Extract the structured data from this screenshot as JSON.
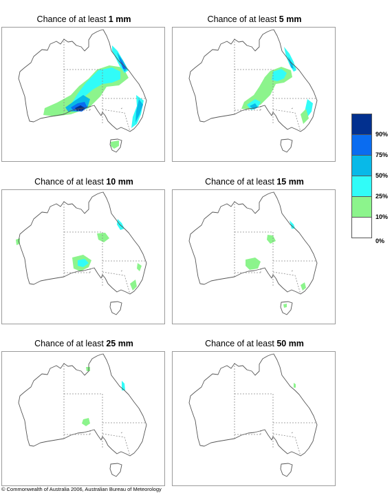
{
  "panels": [
    {
      "title_prefix": "Chance of at least ",
      "amount": "1 mm"
    },
    {
      "title_prefix": "Chance of at least ",
      "amount": "5 mm"
    },
    {
      "title_prefix": "Chance of at least ",
      "amount": "10 mm"
    },
    {
      "title_prefix": "Chance of at least ",
      "amount": "15 mm"
    },
    {
      "title_prefix": "Chance of at least ",
      "amount": "25 mm"
    },
    {
      "title_prefix": "Chance of at least ",
      "amount": "50 mm"
    }
  ],
  "legend": {
    "ticks": [
      "90%",
      "75%",
      "50%",
      "25%",
      "10%",
      "0%"
    ],
    "colors": [
      "#02308f",
      "#0a6cf0",
      "#08b9e8",
      "#31fcf8",
      "#8cf48c",
      "#ffffff"
    ]
  },
  "colors": {
    "coast": "#555555",
    "state_border": "#8a8a8a"
  },
  "copyright": "© Commonwealth of Australia 2006, Australian Bureau of Meteorology"
}
